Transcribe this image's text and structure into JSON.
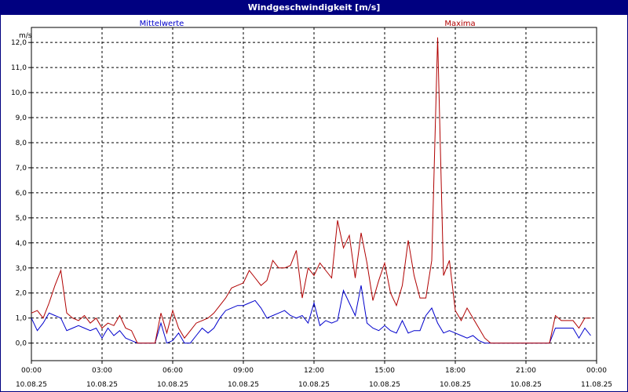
{
  "window": {
    "title": "Windgeschwindigkeit [m/s]"
  },
  "colors": {
    "mean": "#0000cc",
    "max": "#b00000",
    "titlebar": "#000080"
  },
  "chart_data": {
    "type": "line",
    "title": "Windgeschwindigkeit [m/s]",
    "ylabel": "m/s",
    "xlabel": "",
    "ylim": [
      -0.7,
      12.6
    ],
    "yticks": [
      0,
      1,
      2,
      3,
      4,
      5,
      6,
      7,
      8,
      9,
      10,
      11,
      12
    ],
    "ytick_labels": [
      "0,0",
      "1,0",
      "2,0",
      "3,0",
      "4,0",
      "5,0",
      "6,0",
      "7,0",
      "8,0",
      "9,0",
      "10,0",
      "11,0",
      "12,0"
    ],
    "xlim": [
      0,
      24
    ],
    "xticks": [
      {
        "t": 0,
        "time": "00:00",
        "date": "10.08.25"
      },
      {
        "t": 3,
        "time": "03:00",
        "date": "10.08.25"
      },
      {
        "t": 6,
        "time": "06:00",
        "date": "10.08.25"
      },
      {
        "t": 9,
        "time": "09:00",
        "date": "10.08.25"
      },
      {
        "t": 12,
        "time": "12:00",
        "date": "10.08.25"
      },
      {
        "t": 15,
        "time": "15:00",
        "date": "10.08.25"
      },
      {
        "t": 18,
        "time": "18:00",
        "date": "10.08.25"
      },
      {
        "t": 21,
        "time": "21:00",
        "date": "10.08.25"
      },
      {
        "t": 24,
        "time": "00:00",
        "date": "11.08.25"
      }
    ],
    "grid": true,
    "series": [
      {
        "name": "Mittelwerte",
        "color": "#0000cc",
        "points": [
          [
            0.0,
            1.0
          ],
          [
            0.25,
            0.5
          ],
          [
            0.5,
            0.8
          ],
          [
            0.75,
            1.2
          ],
          [
            1.0,
            1.1
          ],
          [
            1.25,
            1.0
          ],
          [
            1.5,
            0.5
          ],
          [
            1.75,
            0.6
          ],
          [
            2.0,
            0.7
          ],
          [
            2.25,
            0.6
          ],
          [
            2.5,
            0.5
          ],
          [
            2.75,
            0.6
          ],
          [
            3.0,
            0.2
          ],
          [
            3.25,
            0.6
          ],
          [
            3.5,
            0.3
          ],
          [
            3.75,
            0.5
          ],
          [
            4.0,
            0.2
          ],
          [
            4.25,
            0.1
          ],
          [
            4.5,
            0.0
          ],
          [
            4.75,
            0.0
          ],
          [
            5.0,
            0.0
          ],
          [
            5.25,
            0.0
          ],
          [
            5.5,
            0.8
          ],
          [
            5.75,
            0.0
          ],
          [
            6.0,
            0.1
          ],
          [
            6.25,
            0.4
          ],
          [
            6.5,
            0.0
          ],
          [
            6.75,
            0.0
          ],
          [
            7.0,
            0.3
          ],
          [
            7.25,
            0.6
          ],
          [
            7.5,
            0.4
          ],
          [
            7.75,
            0.6
          ],
          [
            8.0,
            1.0
          ],
          [
            8.25,
            1.3
          ],
          [
            8.5,
            1.4
          ],
          [
            8.75,
            1.5
          ],
          [
            9.0,
            1.5
          ],
          [
            9.25,
            1.6
          ],
          [
            9.5,
            1.7
          ],
          [
            9.75,
            1.4
          ],
          [
            10.0,
            1.0
          ],
          [
            10.25,
            1.1
          ],
          [
            10.5,
            1.2
          ],
          [
            10.75,
            1.3
          ],
          [
            11.0,
            1.1
          ],
          [
            11.25,
            1.0
          ],
          [
            11.5,
            1.1
          ],
          [
            11.75,
            0.8
          ],
          [
            12.0,
            1.6
          ],
          [
            12.25,
            0.7
          ],
          [
            12.5,
            0.9
          ],
          [
            12.75,
            0.8
          ],
          [
            13.0,
            0.9
          ],
          [
            13.25,
            2.1
          ],
          [
            13.5,
            1.6
          ],
          [
            13.75,
            1.1
          ],
          [
            14.0,
            2.3
          ],
          [
            14.25,
            0.8
          ],
          [
            14.5,
            0.6
          ],
          [
            14.75,
            0.5
          ],
          [
            15.0,
            0.7
          ],
          [
            15.25,
            0.5
          ],
          [
            15.5,
            0.4
          ],
          [
            15.75,
            0.9
          ],
          [
            16.0,
            0.4
          ],
          [
            16.25,
            0.5
          ],
          [
            16.5,
            0.5
          ],
          [
            16.75,
            1.1
          ],
          [
            17.0,
            1.4
          ],
          [
            17.25,
            0.8
          ],
          [
            17.5,
            0.4
          ],
          [
            17.75,
            0.5
          ],
          [
            18.0,
            0.4
          ],
          [
            18.25,
            0.3
          ],
          [
            18.5,
            0.2
          ],
          [
            18.75,
            0.3
          ],
          [
            19.0,
            0.1
          ],
          [
            19.25,
            0.0
          ],
          [
            19.5,
            0.0
          ],
          [
            19.75,
            0.0
          ],
          [
            20.0,
            0.0
          ],
          [
            20.25,
            0.0
          ],
          [
            20.5,
            0.0
          ],
          [
            20.75,
            0.0
          ],
          [
            21.0,
            0.0
          ],
          [
            21.25,
            0.0
          ],
          [
            21.5,
            0.0
          ],
          [
            21.75,
            0.0
          ],
          [
            22.0,
            0.0
          ],
          [
            22.25,
            0.6
          ],
          [
            22.5,
            0.6
          ],
          [
            22.75,
            0.6
          ],
          [
            23.0,
            0.6
          ],
          [
            23.25,
            0.2
          ],
          [
            23.5,
            0.6
          ],
          [
            23.75,
            0.3
          ]
        ]
      },
      {
        "name": "Maxima",
        "color": "#b00000",
        "points": [
          [
            0.0,
            1.2
          ],
          [
            0.25,
            1.3
          ],
          [
            0.5,
            1.0
          ],
          [
            0.75,
            1.6
          ],
          [
            1.0,
            2.3
          ],
          [
            1.25,
            2.9
          ],
          [
            1.5,
            1.2
          ],
          [
            1.75,
            1.0
          ],
          [
            2.0,
            0.9
          ],
          [
            2.25,
            1.1
          ],
          [
            2.5,
            0.8
          ],
          [
            2.75,
            1.0
          ],
          [
            3.0,
            0.6
          ],
          [
            3.25,
            0.8
          ],
          [
            3.5,
            0.7
          ],
          [
            3.75,
            1.1
          ],
          [
            4.0,
            0.6
          ],
          [
            4.25,
            0.5
          ],
          [
            4.5,
            0.0
          ],
          [
            4.75,
            0.0
          ],
          [
            5.0,
            0.0
          ],
          [
            5.25,
            0.0
          ],
          [
            5.5,
            1.2
          ],
          [
            5.75,
            0.4
          ],
          [
            6.0,
            1.3
          ],
          [
            6.25,
            0.6
          ],
          [
            6.5,
            0.2
          ],
          [
            6.75,
            0.5
          ],
          [
            7.0,
            0.8
          ],
          [
            7.25,
            0.9
          ],
          [
            7.5,
            1.0
          ],
          [
            7.75,
            1.2
          ],
          [
            8.0,
            1.5
          ],
          [
            8.25,
            1.8
          ],
          [
            8.5,
            2.2
          ],
          [
            8.75,
            2.3
          ],
          [
            9.0,
            2.4
          ],
          [
            9.25,
            2.9
          ],
          [
            9.5,
            2.6
          ],
          [
            9.75,
            2.3
          ],
          [
            10.0,
            2.5
          ],
          [
            10.25,
            3.3
          ],
          [
            10.5,
            3.0
          ],
          [
            10.75,
            3.0
          ],
          [
            11.0,
            3.1
          ],
          [
            11.25,
            3.7
          ],
          [
            11.5,
            1.8
          ],
          [
            11.75,
            3.0
          ],
          [
            12.0,
            2.7
          ],
          [
            12.25,
            3.2
          ],
          [
            12.5,
            2.9
          ],
          [
            12.75,
            2.6
          ],
          [
            13.0,
            4.9
          ],
          [
            13.25,
            3.8
          ],
          [
            13.5,
            4.3
          ],
          [
            13.75,
            2.6
          ],
          [
            14.0,
            4.4
          ],
          [
            14.25,
            3.2
          ],
          [
            14.5,
            1.7
          ],
          [
            14.75,
            2.5
          ],
          [
            15.0,
            3.2
          ],
          [
            15.25,
            2.0
          ],
          [
            15.5,
            1.5
          ],
          [
            15.75,
            2.3
          ],
          [
            16.0,
            4.1
          ],
          [
            16.25,
            2.7
          ],
          [
            16.5,
            1.8
          ],
          [
            16.75,
            1.8
          ],
          [
            17.0,
            3.3
          ],
          [
            17.25,
            12.2
          ],
          [
            17.5,
            2.7
          ],
          [
            17.75,
            3.3
          ],
          [
            18.0,
            1.3
          ],
          [
            18.25,
            0.9
          ],
          [
            18.5,
            1.4
          ],
          [
            18.75,
            1.0
          ],
          [
            19.0,
            0.6
          ],
          [
            19.25,
            0.2
          ],
          [
            19.5,
            0.0
          ],
          [
            19.75,
            0.0
          ],
          [
            20.0,
            0.0
          ],
          [
            20.25,
            0.0
          ],
          [
            20.5,
            0.0
          ],
          [
            20.75,
            0.0
          ],
          [
            21.0,
            0.0
          ],
          [
            21.25,
            0.0
          ],
          [
            21.5,
            0.0
          ],
          [
            21.75,
            0.0
          ],
          [
            22.0,
            0.0
          ],
          [
            22.25,
            1.1
          ],
          [
            22.5,
            0.9
          ],
          [
            22.75,
            0.9
          ],
          [
            23.0,
            0.9
          ],
          [
            23.25,
            0.6
          ],
          [
            23.5,
            1.0
          ],
          [
            23.75,
            1.0
          ]
        ]
      }
    ]
  }
}
